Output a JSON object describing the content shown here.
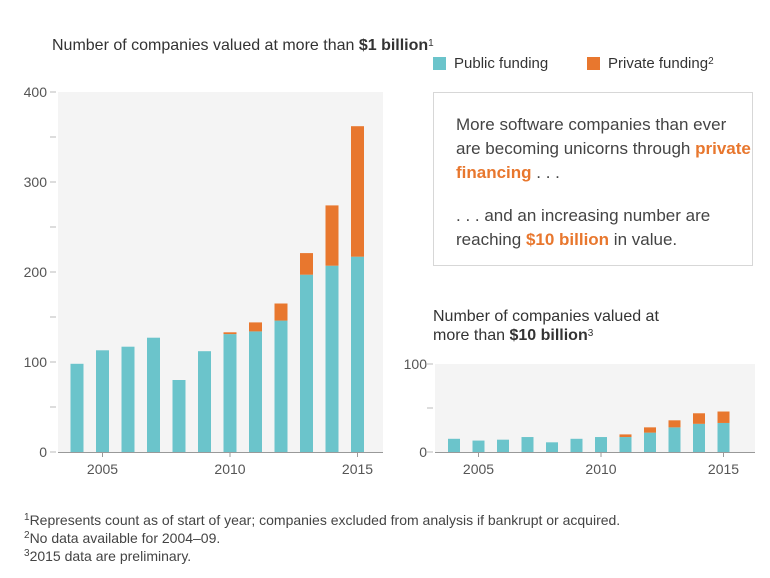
{
  "colors": {
    "public": "#6bc4cb",
    "private": "#e8772e",
    "plot_bg": "#f4f4f4"
  },
  "legend": {
    "public_label": "Public funding",
    "private_label": "Private funding",
    "private_sup": "2"
  },
  "callout": {
    "line1_pre": "More software companies than ever are becoming unicorns through ",
    "line1_hl": "private financing",
    "line1_post": " . . .",
    "line2_pre": ". . . and an increasing number are reaching ",
    "line2_hl": "$10 billion",
    "line2_post": " in value."
  },
  "footnotes": [
    {
      "sup": "1",
      "text": "Represents count as of start of year; companies excluded from analysis if bankrupt or acquired."
    },
    {
      "sup": "2",
      "text": "No data available for 2004–09."
    },
    {
      "sup": "3",
      "text": "2015 data are preliminary."
    }
  ],
  "chart_data": [
    {
      "type": "bar",
      "stacked": true,
      "title_pre": "Number of companies valued at more than ",
      "title_bold": "$1 billion",
      "title_sup": "1",
      "x": [
        2004,
        2005,
        2006,
        2007,
        2008,
        2009,
        2010,
        2011,
        2012,
        2013,
        2014,
        2015
      ],
      "series": [
        {
          "name": "Public funding",
          "values": [
            98,
            113,
            117,
            127,
            80,
            112,
            131,
            134,
            146,
            197,
            207,
            217
          ]
        },
        {
          "name": "Private funding",
          "values": [
            0,
            0,
            0,
            0,
            0,
            0,
            2,
            10,
            19,
            24,
            67,
            145
          ]
        }
      ],
      "ylim": [
        0,
        400
      ],
      "yticks": [
        0,
        100,
        200,
        300,
        400
      ],
      "xticks": [
        2005,
        2010,
        2015
      ],
      "grid": false
    },
    {
      "type": "bar",
      "stacked": true,
      "title_pre": "Number of companies valued at more than ",
      "title_bold": "$10 billion",
      "title_sup": "3",
      "x": [
        2004,
        2005,
        2006,
        2007,
        2008,
        2009,
        2010,
        2011,
        2012,
        2013,
        2014,
        2015
      ],
      "series": [
        {
          "name": "Public funding",
          "values": [
            15,
            13,
            14,
            17,
            11,
            15,
            17,
            17,
            22,
            28,
            32,
            33
          ]
        },
        {
          "name": "Private funding",
          "values": [
            0,
            0,
            0,
            0,
            0,
            0,
            0,
            3,
            6,
            8,
            12,
            13
          ]
        }
      ],
      "ylim": [
        0,
        100
      ],
      "yticks": [
        0,
        100
      ],
      "xticks": [
        2005,
        2010,
        2015
      ],
      "grid": false
    }
  ]
}
